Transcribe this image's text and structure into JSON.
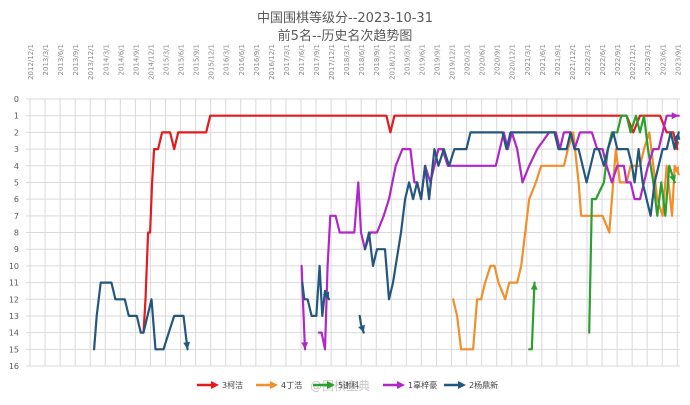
{
  "chart_data": {
    "type": "line",
    "title": "中国围棋等级分--2023-10-31",
    "subtitle": "前5名--历史名次趋势图",
    "ylim": [
      0,
      16
    ],
    "y_reversed": true,
    "y_ticks": [
      0,
      1,
      2,
      3,
      4,
      5,
      6,
      7,
      8,
      9,
      10,
      11,
      12,
      13,
      14,
      15,
      16
    ],
    "x_ticks": [
      "2012/12/1",
      "2013/3/1",
      "2013/6/1",
      "2013/9/1",
      "2013/12/1",
      "2014/3/1",
      "2014/6/1",
      "2014/9/1",
      "2014/12/1",
      "2015/3/1",
      "2015/6/1",
      "2015/9/1",
      "2015/12/1",
      "2016/3/1",
      "2016/6/1",
      "2016/9/1",
      "2016/12/1",
      "2017/3/1",
      "2017/6/1",
      "2017/9/1",
      "2017/12/1",
      "2018/3/1",
      "2018/6/1",
      "2018/9/1",
      "2018/12/1",
      "2019/3/1",
      "2019/6/1",
      "2019/9/1",
      "2019/12/1",
      "2020/3/1",
      "2020/6/1",
      "2020/9/1",
      "2020/12/1",
      "2021/3/1",
      "2021/6/1",
      "2021/9/1",
      "2021/12/1",
      "2022/3/1",
      "2022/6/1",
      "2022/9/1",
      "2022/12/1",
      "2023/3/1",
      "2023/6/1",
      "2023/9/1"
    ],
    "grid": true,
    "legend_position": "bottom",
    "watermark": "@围棋宝典",
    "series": [
      {
        "name": "3柯洁",
        "color": "#e41a1c",
        "points": [
          [
            17.6,
            14
          ],
          [
            17.9,
            12
          ],
          [
            18.1,
            10
          ],
          [
            18.3,
            8
          ],
          [
            18.6,
            8
          ],
          [
            18.9,
            5
          ],
          [
            19.2,
            3
          ],
          [
            19.8,
            3
          ],
          [
            20.4,
            2
          ],
          [
            21.6,
            2
          ],
          [
            22.2,
            3
          ],
          [
            22.8,
            2
          ],
          [
            24,
            2
          ],
          [
            27,
            2
          ],
          [
            27.6,
            1
          ],
          [
            54,
            1
          ],
          [
            54.6,
            2
          ],
          [
            55.2,
            1
          ],
          [
            90,
            1
          ],
          [
            91,
            2
          ],
          [
            92,
            1
          ],
          [
            95,
            1
          ],
          [
            96,
            2
          ],
          [
            97,
            2
          ],
          [
            97.6,
            3
          ]
        ]
      },
      {
        "name": "4丁浩",
        "color": "#f28e2b",
        "points": [
          [
            64,
            12
          ],
          [
            64.6,
            13
          ],
          [
            65.2,
            15
          ],
          [
            67,
            15
          ],
          [
            67.6,
            12
          ],
          [
            68.2,
            12
          ],
          [
            68.8,
            11
          ],
          [
            69.6,
            10
          ],
          [
            70.2,
            10
          ],
          [
            70.8,
            11
          ],
          [
            71.8,
            12
          ],
          [
            72.4,
            11
          ],
          [
            73.6,
            11
          ],
          [
            74.2,
            10
          ],
          [
            74.8,
            8
          ],
          [
            75.4,
            6
          ],
          [
            76.4,
            5
          ],
          [
            77.2,
            4
          ],
          [
            80.6,
            4
          ],
          [
            81.2,
            3
          ],
          [
            82,
            2
          ],
          [
            82.8,
            5
          ],
          [
            83.2,
            7
          ],
          [
            86.4,
            7
          ],
          [
            87.4,
            8
          ],
          [
            87.8,
            6
          ],
          [
            88.4,
            3
          ],
          [
            89,
            5
          ],
          [
            90,
            5
          ],
          [
            90.6,
            4
          ],
          [
            92,
            4
          ],
          [
            92.6,
            3
          ],
          [
            93.4,
            2
          ],
          [
            94,
            4
          ],
          [
            94.6,
            6
          ],
          [
            95.4,
            7
          ],
          [
            96,
            4
          ],
          [
            96.8,
            7
          ],
          [
            97.2,
            4
          ],
          [
            97.8,
            4.5
          ]
        ]
      },
      {
        "name": "5谢科",
        "color": "#2ca02c",
        "points": [
          [
            75.4,
            15
          ],
          [
            75.8,
            15
          ],
          [
            76.2,
            11
          ]
        ]
      },
      {
        "name": "5谢科",
        "color": "#2ca02c",
        "points": [
          [
            84.4,
            14
          ],
          [
            84.8,
            6
          ],
          [
            85.4,
            6
          ],
          [
            86.6,
            5
          ],
          [
            87.2,
            3
          ],
          [
            87.8,
            2
          ],
          [
            88.6,
            2
          ],
          [
            89.2,
            1
          ],
          [
            90,
            1
          ],
          [
            90.6,
            2
          ],
          [
            91.4,
            1
          ],
          [
            92,
            2
          ],
          [
            92.6,
            1
          ],
          [
            93.2,
            3
          ],
          [
            94,
            5
          ],
          [
            94.6,
            7
          ],
          [
            95.2,
            5
          ],
          [
            95.8,
            7
          ],
          [
            96.4,
            4
          ],
          [
            97.2,
            5
          ]
        ]
      },
      {
        "name": "1辜梓豪",
        "color": "#b027c8",
        "points": [
          [
            41.3,
            10
          ],
          [
            41.5,
            12
          ],
          [
            41.8,
            15
          ]
        ]
      },
      {
        "name": "1辜梓豪",
        "color": "#b027c8",
        "points": [
          [
            43.9,
            14
          ],
          [
            44.3,
            14
          ],
          [
            44.8,
            15
          ],
          [
            45.2,
            10
          ],
          [
            45.6,
            7
          ],
          [
            46.4,
            7
          ],
          [
            47,
            8
          ],
          [
            49.2,
            8
          ],
          [
            49.8,
            5
          ],
          [
            50.2,
            8
          ],
          [
            50.8,
            9
          ],
          [
            51.6,
            8
          ],
          [
            52.6,
            8
          ],
          [
            53.6,
            7
          ],
          [
            54.4,
            6
          ],
          [
            55.4,
            4
          ],
          [
            56.4,
            3
          ],
          [
            57.6,
            3
          ],
          [
            58.2,
            5
          ],
          [
            58.6,
            5
          ],
          [
            59.2,
            6
          ],
          [
            59.8,
            4
          ],
          [
            60.6,
            5
          ],
          [
            61.8,
            3
          ],
          [
            62.4,
            3
          ],
          [
            63.2,
            4
          ],
          [
            70.4,
            4
          ],
          [
            71.6,
            2
          ],
          [
            72.2,
            3
          ],
          [
            72.8,
            2
          ],
          [
            73.6,
            3
          ],
          [
            74.4,
            5
          ],
          [
            75.4,
            4
          ],
          [
            76.6,
            3
          ],
          [
            78.4,
            2
          ],
          [
            79.4,
            2
          ],
          [
            80,
            3
          ],
          [
            80.6,
            2
          ],
          [
            81.6,
            2
          ],
          [
            82.2,
            3
          ],
          [
            83,
            2
          ],
          [
            84.8,
            2
          ],
          [
            85.6,
            3
          ],
          [
            86.4,
            3
          ],
          [
            87,
            4
          ],
          [
            87.8,
            5
          ],
          [
            88.6,
            4
          ],
          [
            89.6,
            4
          ],
          [
            90,
            5
          ],
          [
            90.6,
            5
          ],
          [
            91.2,
            6
          ],
          [
            92,
            6
          ],
          [
            92.6,
            5
          ],
          [
            93.2,
            4
          ],
          [
            94,
            3
          ],
          [
            94.8,
            3
          ],
          [
            95.4,
            2
          ],
          [
            96,
            1
          ],
          [
            97,
            1
          ],
          [
            97.8,
            1
          ]
        ]
      },
      {
        "name": "2杨鼎新",
        "color": "#24577e",
        "points": [
          [
            10.2,
            15
          ],
          [
            10.6,
            13
          ],
          [
            11.2,
            11
          ],
          [
            12.8,
            11
          ],
          [
            13.4,
            12
          ],
          [
            14.8,
            12
          ],
          [
            15.4,
            13
          ],
          [
            16.6,
            13
          ],
          [
            17.2,
            14
          ],
          [
            17.6,
            14
          ],
          [
            18.2,
            13
          ],
          [
            18.8,
            12
          ],
          [
            19.4,
            15
          ],
          [
            20.6,
            15
          ],
          [
            21.4,
            14
          ],
          [
            22.2,
            13
          ],
          [
            23.6,
            13
          ],
          [
            24.2,
            15
          ]
        ]
      },
      {
        "name": "2杨鼎新",
        "color": "#24577e",
        "points": [
          [
            41.4,
            11
          ],
          [
            41.7,
            12
          ],
          [
            42.2,
            12
          ],
          [
            42.8,
            13
          ],
          [
            43.5,
            13
          ],
          [
            44,
            10
          ],
          [
            44.4,
            13
          ],
          [
            44.8,
            11.5
          ],
          [
            45.4,
            12
          ]
        ]
      },
      {
        "name": "2杨鼎新",
        "color": "#24577e",
        "points": [
          [
            50,
            13
          ],
          [
            50.2,
            13.5
          ],
          [
            50.6,
            14
          ]
        ]
      },
      {
        "name": "2杨鼎新",
        "color": "#24577e",
        "points": [
          [
            50.8,
            9
          ],
          [
            51.4,
            8
          ],
          [
            52,
            10
          ],
          [
            52.6,
            9
          ],
          [
            53.8,
            9
          ],
          [
            54.4,
            12
          ],
          [
            55,
            11
          ],
          [
            56.2,
            8
          ],
          [
            56.8,
            6
          ],
          [
            57.4,
            5
          ],
          [
            58,
            6
          ],
          [
            58.6,
            5
          ],
          [
            59.2,
            6
          ],
          [
            59.8,
            4
          ],
          [
            60.4,
            6
          ],
          [
            61.2,
            3
          ],
          [
            61.8,
            4
          ],
          [
            62.6,
            3
          ],
          [
            63.4,
            4
          ],
          [
            64.2,
            3
          ],
          [
            66,
            3
          ],
          [
            66.6,
            2
          ],
          [
            71.4,
            2
          ],
          [
            72,
            3
          ],
          [
            72.6,
            2
          ],
          [
            79.2,
            2
          ],
          [
            79.8,
            3
          ],
          [
            81,
            3
          ],
          [
            81.6,
            2
          ],
          [
            82.2,
            3
          ],
          [
            82.8,
            3
          ],
          [
            84,
            5
          ],
          [
            84.6,
            4
          ],
          [
            85.2,
            3
          ],
          [
            85.8,
            3
          ],
          [
            86.6,
            4
          ],
          [
            87.2,
            3
          ],
          [
            88,
            2
          ],
          [
            88.6,
            3
          ],
          [
            90.2,
            3
          ],
          [
            90.8,
            4
          ],
          [
            91.2,
            5
          ],
          [
            91.8,
            3
          ],
          [
            92.4,
            5
          ],
          [
            93,
            6
          ],
          [
            93.6,
            7
          ],
          [
            94.2,
            5
          ],
          [
            94.8,
            4
          ],
          [
            95.4,
            3
          ],
          [
            96,
            3
          ],
          [
            96.6,
            2
          ],
          [
            97.2,
            3
          ],
          [
            97.8,
            2
          ]
        ]
      }
    ],
    "legend": [
      {
        "label": "3柯洁",
        "color": "#e41a1c"
      },
      {
        "label": "4丁浩",
        "color": "#f28e2b"
      },
      {
        "label": "5谢科",
        "color": "#2ca02c"
      },
      {
        "label": "1辜梓豪",
        "color": "#b027c8"
      },
      {
        "label": "2杨鼎新",
        "color": "#24577e"
      }
    ]
  }
}
